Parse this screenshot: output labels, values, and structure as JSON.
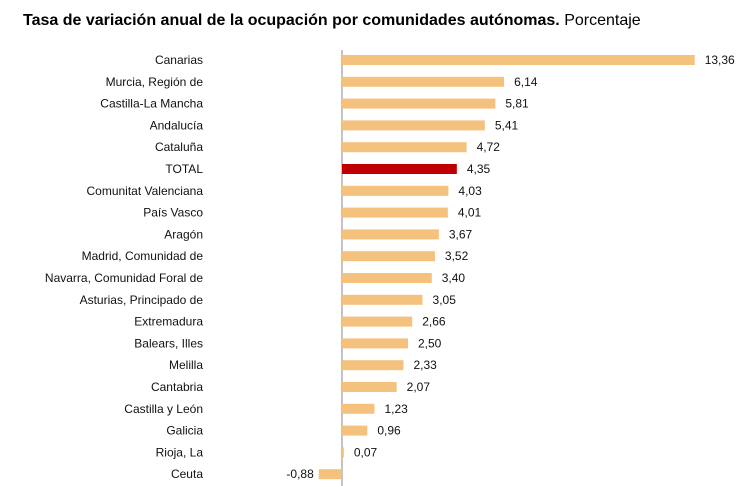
{
  "title": "Tasa de variación anual de la ocupación por comunidades autónomas.",
  "subtitle": "Porcentaje",
  "colors": {
    "bar": "#F5C27E",
    "highlight": "#C00000",
    "axis": "#888888"
  },
  "chart_data": {
    "type": "bar",
    "orientation": "horizontal",
    "title": "Tasa de variación anual de la ocupación por comunidades autónomas.",
    "subtitle": "Porcentaje",
    "xlabel": "",
    "ylabel": "",
    "highlight_category": "TOTAL",
    "categories": [
      "Canarias",
      "Murcia, Región de",
      "Castilla-La Mancha",
      "Andalucía",
      "Cataluña",
      "TOTAL",
      "Comunitat Valenciana",
      "País Vasco",
      "Aragón",
      "Madrid, Comunidad de",
      "Navarra, Comunidad Foral de",
      "Asturias, Principado de",
      "Extremadura",
      "Balears, Illes",
      "Melilla",
      "Cantabria",
      "Castilla y León",
      "Galicia",
      "Rioja, La",
      "Ceuta"
    ],
    "values": [
      13.36,
      6.14,
      5.81,
      5.41,
      4.72,
      4.35,
      4.03,
      4.01,
      3.67,
      3.52,
      3.4,
      3.05,
      2.66,
      2.5,
      2.33,
      2.07,
      1.23,
      0.96,
      0.07,
      -0.88
    ],
    "labels": [
      "13,36",
      "6,14",
      "5,81",
      "5,41",
      "4,72",
      "4,35",
      "4,03",
      "4,01",
      "3,67",
      "3,52",
      "3,40",
      "3,05",
      "2,66",
      "2,50",
      "2,33",
      "2,07",
      "1,23",
      "0,96",
      "0,07",
      "-0,88"
    ],
    "grid": false,
    "legend": "none"
  }
}
